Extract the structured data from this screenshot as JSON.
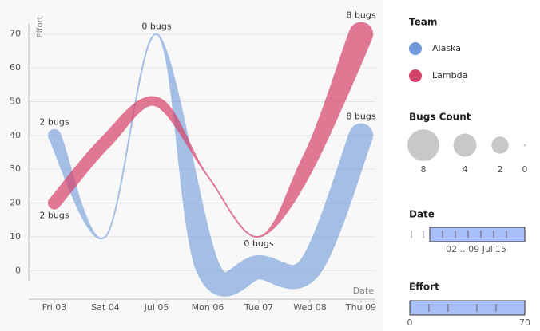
{
  "chart_data": {
    "type": "variable-width-line",
    "x_label": "Date",
    "y_label": "Effort",
    "categories": [
      "Fri 03",
      "Sat 04",
      "Jul 05",
      "Mon 06",
      "Tue 07",
      "Wed 08",
      "Thu 09"
    ],
    "ylim": [
      -3,
      73
    ],
    "yticks": [
      0,
      10,
      20,
      30,
      40,
      50,
      60,
      70
    ],
    "grid": true,
    "legend_title": "Team",
    "series": [
      {
        "name": "Alaska",
        "color": "#6f99d9",
        "values": [
          40,
          10,
          70,
          1,
          1,
          1,
          40
        ],
        "sizes": [
          2,
          0,
          0,
          8,
          8,
          8,
          8
        ],
        "size_labels": [
          "2 bugs",
          null,
          "0 bugs",
          null,
          null,
          null,
          "8 bugs"
        ]
      },
      {
        "name": "Lambda",
        "color": "#d6426a",
        "values": [
          20,
          38,
          50,
          28,
          10,
          33,
          70
        ],
        "sizes": [
          2,
          2,
          1,
          0,
          0,
          3,
          8
        ],
        "size_labels": [
          "2 bugs",
          null,
          null,
          null,
          "0 bugs",
          null,
          "8 bugs"
        ]
      }
    ],
    "size_legend": {
      "title": "Bugs Count",
      "values": [
        8,
        4,
        2,
        0
      ]
    },
    "date_filter": {
      "title": "Date",
      "label": "02 .. 09 Jul'15"
    },
    "effort_filter": {
      "title": "Effort",
      "min": 0,
      "max": 70
    }
  }
}
